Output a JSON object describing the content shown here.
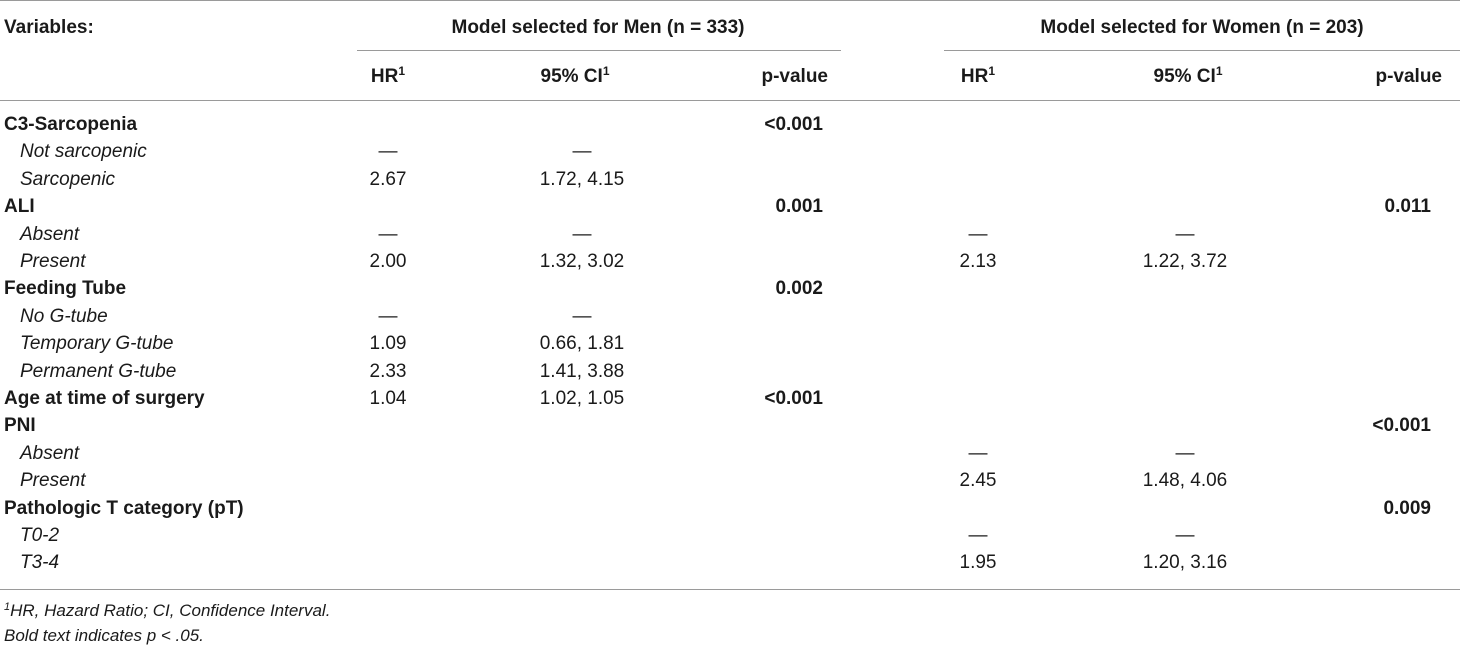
{
  "header": {
    "variables_label": "Variables:",
    "men_group": "Model selected for Men (n = 333)",
    "women_group": "Model selected for Women (n = 203)",
    "col_hr": "HR",
    "col_ci": "95% CI",
    "col_p": "p-value",
    "footnote_marker": "1"
  },
  "rows": [
    {
      "label": "C3-Sarcopenia",
      "bold": true,
      "men_hr": "",
      "men_ci": "",
      "men_p": "<0.001",
      "women_hr": "",
      "women_ci": "",
      "women_p": ""
    },
    {
      "label": "Not sarcopenic",
      "bold": false,
      "men_hr": "—",
      "men_ci": "—",
      "men_p": "",
      "women_hr": "",
      "women_ci": "",
      "women_p": ""
    },
    {
      "label": "Sarcopenic",
      "bold": false,
      "men_hr": "2.67",
      "men_ci": "1.72, 4.15",
      "men_p": "",
      "women_hr": "",
      "women_ci": "",
      "women_p": ""
    },
    {
      "label": "ALI",
      "bold": true,
      "men_hr": "",
      "men_ci": "",
      "men_p": "0.001",
      "women_hr": "",
      "women_ci": "",
      "women_p": "0.011"
    },
    {
      "label": "Absent",
      "bold": false,
      "men_hr": "—",
      "men_ci": "—",
      "men_p": "",
      "women_hr": "—",
      "women_ci": "—",
      "women_p": ""
    },
    {
      "label": "Present",
      "bold": false,
      "men_hr": "2.00",
      "men_ci": "1.32, 3.02",
      "men_p": "",
      "women_hr": "2.13",
      "women_ci": "1.22, 3.72",
      "women_p": ""
    },
    {
      "label": "Feeding Tube",
      "bold": true,
      "men_hr": "",
      "men_ci": "",
      "men_p": "0.002",
      "women_hr": "",
      "women_ci": "",
      "women_p": ""
    },
    {
      "label": "No G-tube",
      "bold": false,
      "men_hr": "—",
      "men_ci": "—",
      "men_p": "",
      "women_hr": "",
      "women_ci": "",
      "women_p": ""
    },
    {
      "label": "Temporary G-tube",
      "bold": false,
      "men_hr": "1.09",
      "men_ci": "0.66, 1.81",
      "men_p": "",
      "women_hr": "",
      "women_ci": "",
      "women_p": ""
    },
    {
      "label": "Permanent G-tube",
      "bold": false,
      "men_hr": "2.33",
      "men_ci": "1.41, 3.88",
      "men_p": "",
      "women_hr": "",
      "women_ci": "",
      "women_p": ""
    },
    {
      "label": "Age at time of surgery",
      "bold": true,
      "men_hr": "1.04",
      "men_ci": "1.02, 1.05",
      "men_p": "<0.001",
      "women_hr": "",
      "women_ci": "",
      "women_p": ""
    },
    {
      "label": "PNI",
      "bold": true,
      "men_hr": "",
      "men_ci": "",
      "men_p": "",
      "women_hr": "",
      "women_ci": "",
      "women_p": "<0.001"
    },
    {
      "label": "Absent",
      "bold": false,
      "men_hr": "",
      "men_ci": "",
      "men_p": "",
      "women_hr": "—",
      "women_ci": "—",
      "women_p": ""
    },
    {
      "label": "Present",
      "bold": false,
      "men_hr": "",
      "men_ci": "",
      "men_p": "",
      "women_hr": "2.45",
      "women_ci": "1.48, 4.06",
      "women_p": ""
    },
    {
      "label": "Pathologic T category (pT)",
      "bold": true,
      "men_hr": "",
      "men_ci": "",
      "men_p": "",
      "women_hr": "",
      "women_ci": "",
      "women_p": "0.009"
    },
    {
      "label": "T0-2",
      "bold": false,
      "men_hr": "",
      "men_ci": "",
      "men_p": "",
      "women_hr": "—",
      "women_ci": "—",
      "women_p": ""
    },
    {
      "label": "T3-4",
      "bold": false,
      "men_hr": "",
      "men_ci": "",
      "men_p": "",
      "women_hr": "1.95",
      "women_ci": "1.20, 3.16",
      "women_p": ""
    }
  ],
  "footnotes": {
    "marker": "1",
    "line1": "HR, Hazard Ratio; CI, Confidence Interval.",
    "line2": "Bold text indicates p < .05."
  }
}
